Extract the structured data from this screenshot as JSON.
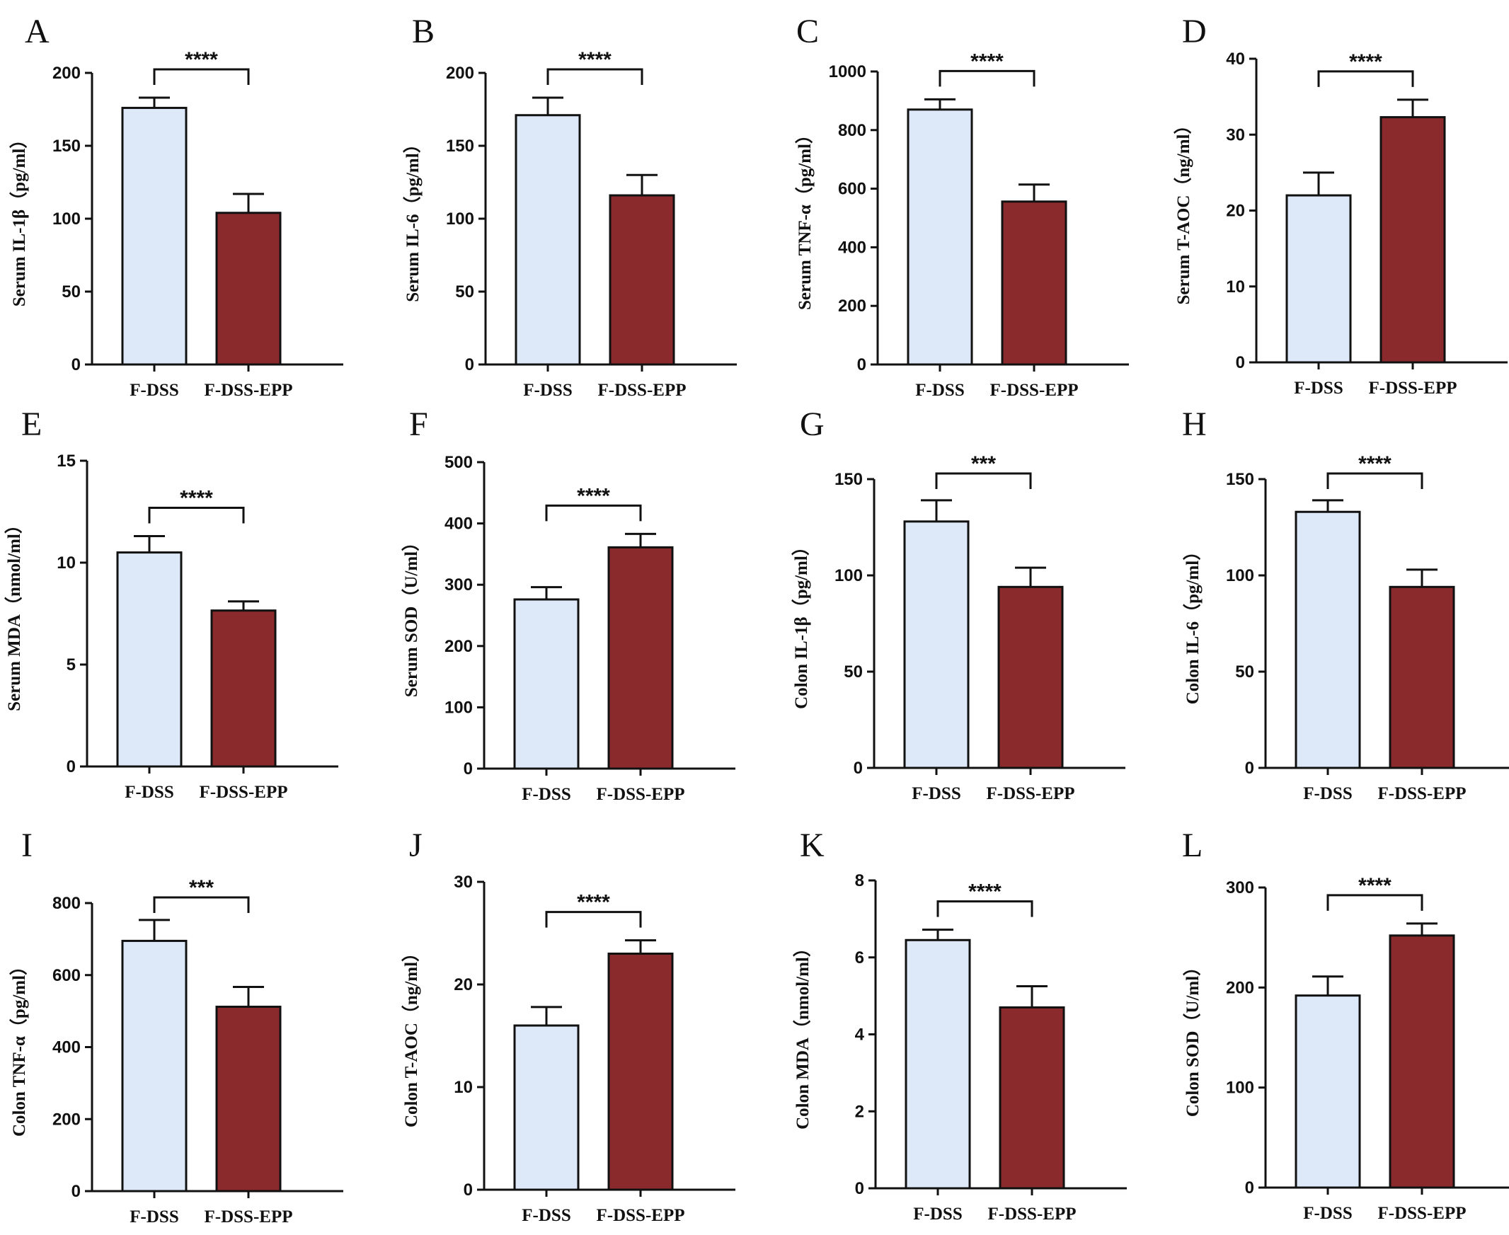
{
  "figure": {
    "categories": [
      "F-DSS",
      "F-DSS-EPP"
    ],
    "colors": {
      "F-DSS": "#dde9f8",
      "F-DSS-EPP": "#8b2a2c",
      "stroke": "#111111"
    }
  },
  "chart_data": [
    {
      "panel": "A",
      "type": "bar",
      "ylabel": "Serum IL-1β（pg/ml）",
      "categories": [
        "F-DSS",
        "F-DSS-EPP"
      ],
      "values": [
        176,
        104
      ],
      "errors": [
        7,
        13
      ],
      "ylim": [
        0,
        200
      ],
      "yticks": [
        0,
        50,
        100,
        150,
        200
      ],
      "significance": "****"
    },
    {
      "panel": "B",
      "type": "bar",
      "ylabel": "Serum IL-6（pg/ml）",
      "categories": [
        "F-DSS",
        "F-DSS-EPP"
      ],
      "values": [
        171,
        116
      ],
      "errors": [
        12,
        14
      ],
      "ylim": [
        0,
        200
      ],
      "yticks": [
        0,
        50,
        100,
        150,
        200
      ],
      "significance": "****"
    },
    {
      "panel": "C",
      "type": "bar",
      "ylabel": "Serum TNF-α（pg/ml）",
      "categories": [
        "F-DSS",
        "F-DSS-EPP"
      ],
      "values": [
        870,
        556
      ],
      "errors": [
        35,
        58
      ],
      "ylim": [
        0,
        1000
      ],
      "yticks": [
        0,
        200,
        400,
        600,
        800,
        1000
      ],
      "significance": "****"
    },
    {
      "panel": "D",
      "type": "bar",
      "ylabel": "Serum T-AOC（ng/ml）",
      "categories": [
        "F-DSS",
        "F-DSS-EPP"
      ],
      "values": [
        22,
        32.3
      ],
      "errors": [
        3,
        2.3
      ],
      "ylim": [
        0,
        40
      ],
      "yticks": [
        0,
        10,
        20,
        30,
        40
      ],
      "significance": "****"
    },
    {
      "panel": "E",
      "type": "bar",
      "ylabel": "Serum MDA（nmol/ml）",
      "categories": [
        "F-DSS",
        "F-DSS-EPP"
      ],
      "values": [
        10.5,
        7.65
      ],
      "errors": [
        0.8,
        0.45
      ],
      "ylim": [
        0,
        15
      ],
      "yticks": [
        0,
        5,
        10,
        15
      ],
      "significance": "****"
    },
    {
      "panel": "F",
      "type": "bar",
      "ylabel": "Serum SOD（U/ml）",
      "categories": [
        "F-DSS",
        "F-DSS-EPP"
      ],
      "values": [
        276,
        361
      ],
      "errors": [
        20,
        22
      ],
      "ylim": [
        0,
        500
      ],
      "yticks": [
        0,
        100,
        200,
        300,
        400,
        500
      ],
      "significance": "****"
    },
    {
      "panel": "G",
      "type": "bar",
      "ylabel": "Colon IL-1β（pg/ml）",
      "categories": [
        "F-DSS",
        "F-DSS-EPP"
      ],
      "values": [
        128,
        94
      ],
      "errors": [
        11,
        10
      ],
      "ylim": [
        0,
        150
      ],
      "yticks": [
        0,
        50,
        100,
        150
      ],
      "significance": "***"
    },
    {
      "panel": "H",
      "type": "bar",
      "ylabel": "Colon IL-6（pg/ml）",
      "categories": [
        "F-DSS",
        "F-DSS-EPP"
      ],
      "values": [
        133,
        94
      ],
      "errors": [
        6,
        9
      ],
      "ylim": [
        0,
        150
      ],
      "yticks": [
        0,
        50,
        100,
        150
      ],
      "significance": "****"
    },
    {
      "panel": "I",
      "type": "bar",
      "ylabel": "Colon TNF-α（pg/ml）",
      "categories": [
        "F-DSS",
        "F-DSS-EPP"
      ],
      "values": [
        695,
        512
      ],
      "errors": [
        58,
        55
      ],
      "ylim": [
        0,
        800
      ],
      "yticks": [
        0,
        200,
        400,
        600,
        800
      ],
      "significance": "***"
    },
    {
      "panel": "J",
      "type": "bar",
      "ylabel": "Colon T-AOC（ng/ml）",
      "categories": [
        "F-DSS",
        "F-DSS-EPP"
      ],
      "values": [
        16,
        23
      ],
      "errors": [
        1.8,
        1.3
      ],
      "ylim": [
        0,
        30
      ],
      "yticks": [
        0,
        10,
        20,
        30
      ],
      "significance": "****"
    },
    {
      "panel": "K",
      "type": "bar",
      "ylabel": "Colon MDA（nmol/ml）",
      "categories": [
        "F-DSS",
        "F-DSS-EPP"
      ],
      "values": [
        6.45,
        4.7
      ],
      "errors": [
        0.27,
        0.55
      ],
      "ylim": [
        0,
        8
      ],
      "yticks": [
        0,
        2,
        4,
        6,
        8
      ],
      "significance": "****"
    },
    {
      "panel": "L",
      "type": "bar",
      "ylabel": "Colon SOD（U/ml）",
      "categories": [
        "F-DSS",
        "F-DSS-EPP"
      ],
      "values": [
        192,
        252
      ],
      "errors": [
        19,
        12
      ],
      "ylim": [
        0,
        300
      ],
      "yticks": [
        0,
        100,
        200,
        300
      ],
      "significance": "****"
    }
  ]
}
